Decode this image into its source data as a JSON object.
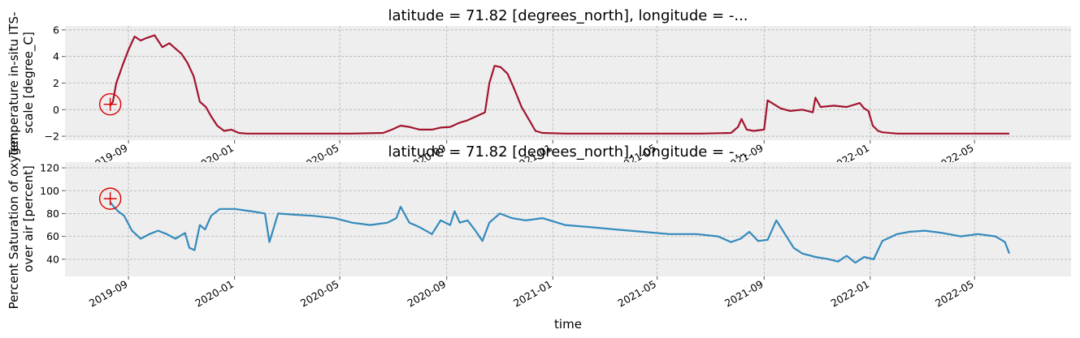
{
  "chart_data": [
    {
      "type": "line",
      "title": "latitude = 71.82 [degrees_north], longitude = -...",
      "ylabel_lines": [
        "Temperature in-situ ITS-",
        "scale [degree_C]"
      ],
      "xlabel": "",
      "series_color": "#a2142f",
      "ylim": [
        -2.3,
        6.3
      ],
      "yticks": [
        -2,
        0,
        2,
        4,
        6
      ],
      "ytick_labels": [
        "−2",
        "0",
        "2",
        "4",
        "6"
      ],
      "xlim": [
        "2019-06-20",
        "2022-08-20"
      ],
      "xticks": [
        "2019-09-01",
        "2020-01-01",
        "2020-05-01",
        "2020-09-01",
        "2021-01-01",
        "2021-05-01",
        "2021-09-01",
        "2022-01-01",
        "2022-05-01"
      ],
      "xtick_labels": [
        "2019-09",
        "2020-01",
        "2020-05",
        "2020-09",
        "2021-01",
        "2021-05",
        "2021-09",
        "2022-01",
        "2022-05"
      ],
      "grid": true,
      "marker": {
        "x": "2019-08-11",
        "y": 0.4,
        "color": "#e00000"
      },
      "series": [
        {
          "x": [
            "2019-08-11",
            "2019-08-14",
            "2019-08-18",
            "2019-08-25",
            "2019-09-01",
            "2019-09-08",
            "2019-09-15",
            "2019-09-22",
            "2019-10-01",
            "2019-10-10",
            "2019-10-18",
            "2019-10-25",
            "2019-11-01",
            "2019-11-08",
            "2019-11-15",
            "2019-11-22",
            "2019-11-29",
            "2019-12-05",
            "2019-12-12",
            "2019-12-20",
            "2019-12-28",
            "2020-01-06",
            "2020-01-15",
            "2020-02-15",
            "2020-04-01",
            "2020-05-15",
            "2020-06-20",
            "2020-06-30",
            "2020-07-10",
            "2020-07-20",
            "2020-08-01",
            "2020-08-15",
            "2020-08-25",
            "2020-09-05",
            "2020-09-15",
            "2020-09-25",
            "2020-10-05",
            "2020-10-15",
            "2020-10-20",
            "2020-10-26",
            "2020-11-02",
            "2020-11-10",
            "2020-11-18",
            "2020-11-26",
            "2020-12-05",
            "2020-12-12",
            "2020-12-20",
            "2021-01-15",
            "2021-03-01",
            "2021-05-01",
            "2021-06-20",
            "2021-07-25",
            "2021-08-02",
            "2021-08-06",
            "2021-08-12",
            "2021-08-20",
            "2021-09-01",
            "2021-09-05",
            "2021-09-10",
            "2021-09-20",
            "2021-10-01",
            "2021-10-15",
            "2021-10-27",
            "2021-10-30",
            "2021-11-05",
            "2021-11-20",
            "2021-12-05",
            "2021-12-20",
            "2021-12-25",
            "2021-12-30",
            "2022-01-04",
            "2022-01-10",
            "2022-01-15",
            "2022-02-01",
            "2022-03-01",
            "2022-04-15",
            "2022-06-10"
          ],
          "y": [
            0.3,
            0.6,
            2.0,
            3.3,
            4.5,
            5.5,
            5.2,
            5.4,
            5.6,
            4.7,
            5.0,
            4.6,
            4.2,
            3.5,
            2.5,
            0.6,
            0.2,
            -0.5,
            -1.2,
            -1.6,
            -1.5,
            -1.75,
            -1.8,
            -1.8,
            -1.8,
            -1.8,
            -1.75,
            -1.5,
            -1.2,
            -1.3,
            -1.5,
            -1.5,
            -1.35,
            -1.3,
            -1.0,
            -0.8,
            -0.5,
            -0.2,
            2.0,
            3.3,
            3.2,
            2.7,
            1.5,
            0.2,
            -0.8,
            -1.6,
            -1.75,
            -1.8,
            -1.8,
            -1.8,
            -1.8,
            -1.75,
            -1.3,
            -0.7,
            -1.5,
            -1.6,
            -1.5,
            0.7,
            0.5,
            0.1,
            -0.1,
            0.0,
            -0.2,
            0.9,
            0.2,
            0.3,
            0.2,
            0.5,
            0.1,
            -0.1,
            -1.2,
            -1.6,
            -1.7,
            -1.8,
            -1.8,
            -1.8,
            -1.8
          ]
        }
      ]
    },
    {
      "type": "line",
      "title": "latitude = 71.82 [degrees_north], longitude = -...",
      "ylabel_lines": [
        "Percent Saturation of oxygen",
        "over air [percent]"
      ],
      "xlabel": "time",
      "series_color": "#348abd",
      "ylim": [
        25,
        125
      ],
      "yticks": [
        40,
        60,
        80,
        100,
        120
      ],
      "ytick_labels": [
        "40",
        "60",
        "80",
        "100",
        "120"
      ],
      "xlim": [
        "2019-06-20",
        "2022-08-20"
      ],
      "xticks": [
        "2019-09-01",
        "2020-01-01",
        "2020-05-01",
        "2020-09-01",
        "2021-01-01",
        "2021-05-01",
        "2021-09-01",
        "2022-01-01",
        "2022-05-01"
      ],
      "xtick_labels": [
        "2019-09",
        "2020-01",
        "2020-05",
        "2020-09",
        "2021-01",
        "2021-05",
        "2021-09",
        "2022-01",
        "2022-05"
      ],
      "grid": true,
      "marker": {
        "x": "2019-08-11",
        "y": 93,
        "color": "#e00000"
      },
      "series": [
        {
          "x": [
            "2019-08-11",
            "2019-08-15",
            "2019-08-20",
            "2019-08-27",
            "2019-09-05",
            "2019-09-15",
            "2019-09-25",
            "2019-10-05",
            "2019-10-15",
            "2019-10-25",
            "2019-11-05",
            "2019-11-10",
            "2019-11-16",
            "2019-11-22",
            "2019-11-28",
            "2019-12-05",
            "2019-12-15",
            "2020-01-01",
            "2020-01-20",
            "2020-02-05",
            "2020-02-10",
            "2020-02-20",
            "2020-03-10",
            "2020-04-01",
            "2020-04-25",
            "2020-05-15",
            "2020-06-05",
            "2020-06-25",
            "2020-07-05",
            "2020-07-10",
            "2020-07-20",
            "2020-08-01",
            "2020-08-15",
            "2020-08-25",
            "2020-09-05",
            "2020-09-10",
            "2020-09-16",
            "2020-09-25",
            "2020-10-05",
            "2020-10-12",
            "2020-10-20",
            "2020-11-01",
            "2020-11-15",
            "2020-12-01",
            "2020-12-20",
            "2021-01-15",
            "2021-02-15",
            "2021-03-15",
            "2021-04-15",
            "2021-05-15",
            "2021-06-15",
            "2021-07-10",
            "2021-07-25",
            "2021-08-05",
            "2021-08-15",
            "2021-08-25",
            "2021-09-05",
            "2021-09-15",
            "2021-09-25",
            "2021-10-05",
            "2021-10-15",
            "2021-10-30",
            "2021-11-15",
            "2021-11-25",
            "2021-12-05",
            "2021-12-15",
            "2021-12-25",
            "2022-01-05",
            "2022-01-15",
            "2022-02-01",
            "2022-02-15",
            "2022-03-05",
            "2022-03-25",
            "2022-04-15",
            "2022-05-05",
            "2022-05-25",
            "2022-06-05",
            "2022-06-10"
          ],
          "y": [
            90,
            86,
            82,
            78,
            65,
            58,
            62,
            65,
            62,
            58,
            63,
            50,
            48,
            70,
            66,
            78,
            84,
            84,
            82,
            80,
            55,
            80,
            79,
            78,
            76,
            72,
            70,
            72,
            76,
            86,
            72,
            68,
            62,
            74,
            70,
            82,
            72,
            74,
            64,
            56,
            72,
            80,
            76,
            74,
            76,
            70,
            68,
            66,
            64,
            62,
            62,
            60,
            55,
            58,
            64,
            56,
            57,
            74,
            62,
            50,
            45,
            42,
            40,
            38,
            43,
            37,
            42,
            40,
            56,
            62,
            64,
            65,
            63,
            60,
            62,
            60,
            55,
            45
          ]
        }
      ]
    }
  ]
}
